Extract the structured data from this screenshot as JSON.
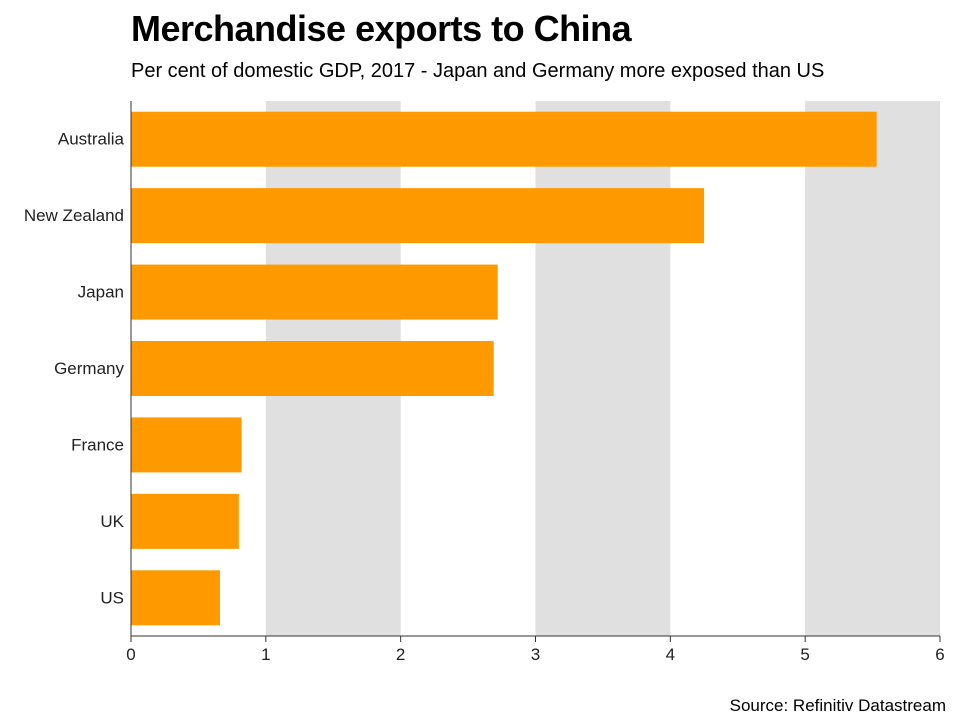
{
  "title": "Merchandise exports to China",
  "subtitle": "Per cent of domestic GDP, 2017 - Japan and Germany more exposed than US",
  "source": "Source: Refinitiv Datastream",
  "colors": {
    "bar": "#ff9900",
    "band": "#e0e0e0",
    "axis": "#333333"
  },
  "chart_data": {
    "type": "bar",
    "orientation": "horizontal",
    "categories": [
      "Australia",
      "New Zealand",
      "Japan",
      "Germany",
      "France",
      "UK",
      "US"
    ],
    "values": [
      5.53,
      4.25,
      2.72,
      2.69,
      0.82,
      0.8,
      0.66
    ],
    "title": "Merchandise exports to China",
    "subtitle": "Per cent of domestic GDP, 2017 - Japan and Germany more exposed than US",
    "xlabel": "",
    "ylabel": "",
    "xlim": [
      0,
      6
    ],
    "xticks": [
      "0",
      "1",
      "2",
      "3",
      "4",
      "5",
      "6"
    ],
    "grid": "alternating vertical bands",
    "legend": "none"
  }
}
